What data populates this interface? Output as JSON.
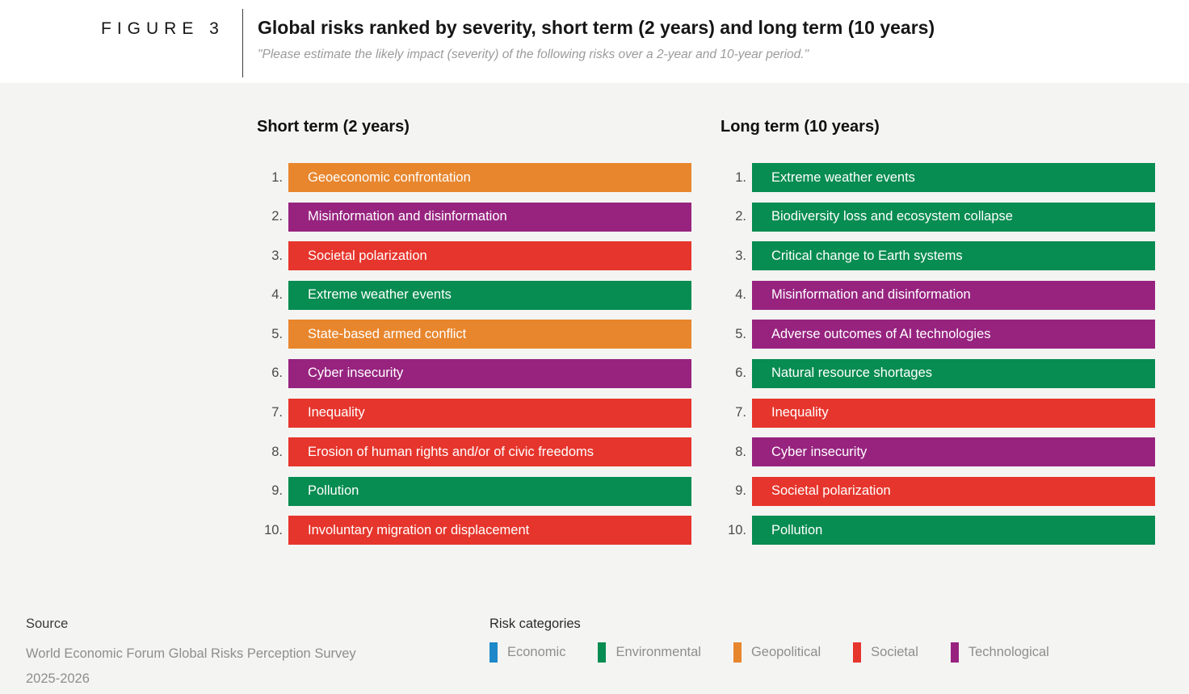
{
  "figure_label": "FIGURE 3",
  "header": {
    "title": "Global risks ranked by severity, short term (2 years) and long term (10 years)",
    "subtitle": "\"Please estimate the likely impact (severity) of the following risks over a 2-year and 10-year period.\""
  },
  "chart_data": {
    "type": "table",
    "title": "Global risks ranked by severity, short term (2 years) and long term (10 years)",
    "legend_position": "bottom",
    "columns": [
      {
        "id": "short-term",
        "heading": "Short term (2 years)",
        "items": [
          {
            "rank": 1,
            "label": "Geoeconomic confrontation",
            "category": "Geopolitical"
          },
          {
            "rank": 2,
            "label": "Misinformation and disinformation",
            "category": "Technological"
          },
          {
            "rank": 3,
            "label": "Societal polarization",
            "category": "Societal"
          },
          {
            "rank": 4,
            "label": "Extreme weather events",
            "category": "Environmental"
          },
          {
            "rank": 5,
            "label": "State-based armed conflict",
            "category": "Geopolitical"
          },
          {
            "rank": 6,
            "label": "Cyber insecurity",
            "category": "Technological"
          },
          {
            "rank": 7,
            "label": "Inequality",
            "category": "Societal"
          },
          {
            "rank": 8,
            "label": "Erosion of human rights and/or of civic freedoms",
            "category": "Societal"
          },
          {
            "rank": 9,
            "label": "Pollution",
            "category": "Environmental"
          },
          {
            "rank": 10,
            "label": "Involuntary migration or displacement",
            "category": "Societal"
          }
        ]
      },
      {
        "id": "long-term",
        "heading": "Long term (10 years)",
        "items": [
          {
            "rank": 1,
            "label": "Extreme weather events",
            "category": "Environmental"
          },
          {
            "rank": 2,
            "label": "Biodiversity loss and ecosystem collapse",
            "category": "Environmental"
          },
          {
            "rank": 3,
            "label": "Critical change to Earth systems",
            "category": "Environmental"
          },
          {
            "rank": 4,
            "label": "Misinformation and disinformation",
            "category": "Technological"
          },
          {
            "rank": 5,
            "label": "Adverse outcomes of AI technologies",
            "category": "Technological"
          },
          {
            "rank": 6,
            "label": "Natural resource shortages",
            "category": "Environmental"
          },
          {
            "rank": 7,
            "label": "Inequality",
            "category": "Societal"
          },
          {
            "rank": 8,
            "label": "Cyber insecurity",
            "category": "Technological"
          },
          {
            "rank": 9,
            "label": "Societal polarization",
            "category": "Societal"
          },
          {
            "rank": 10,
            "label": "Pollution",
            "category": "Environmental"
          }
        ]
      }
    ]
  },
  "risk_categories": {
    "heading": "Risk categories",
    "items": [
      {
        "label": "Economic",
        "color": "#1e88c9"
      },
      {
        "label": "Environmental",
        "color": "#078c51"
      },
      {
        "label": "Geopolitical",
        "color": "#e8862d"
      },
      {
        "label": "Societal",
        "color": "#e6352c"
      },
      {
        "label": "Technological",
        "color": "#97237f"
      }
    ]
  },
  "source": {
    "heading": "Source",
    "line1": "World Economic Forum Global Risks Perception Survey",
    "line2": "2025-2026"
  }
}
